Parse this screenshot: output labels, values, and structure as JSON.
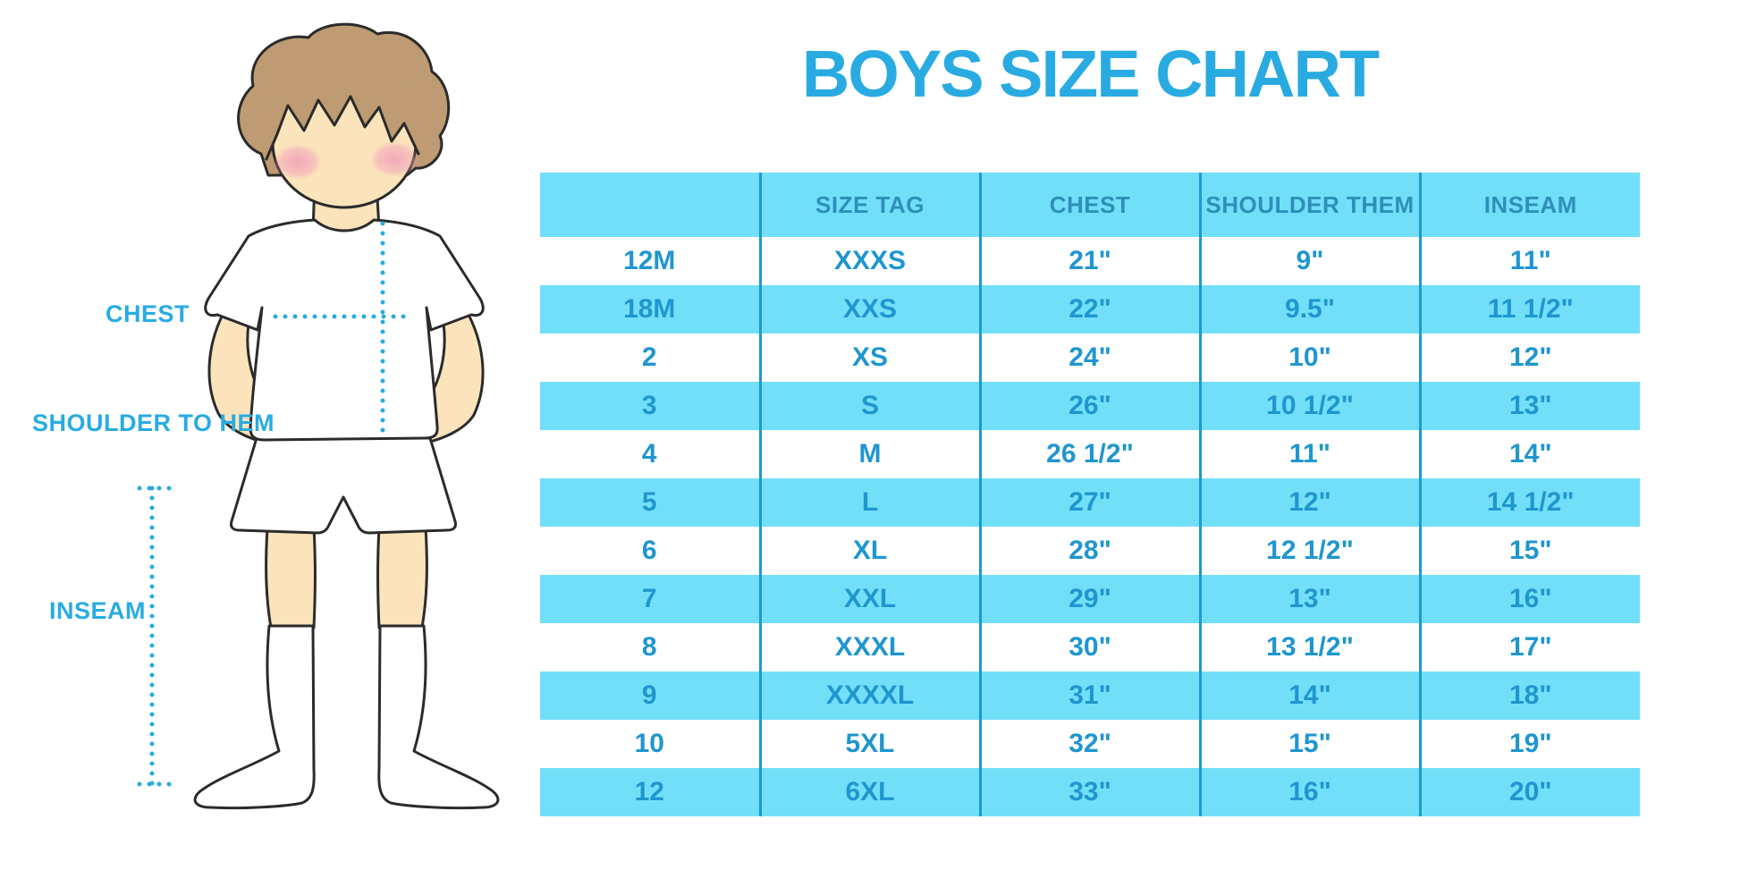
{
  "colors": {
    "accent": "#29ABE2",
    "stripe": "#72DFF9",
    "divider": "#1B9AD2",
    "header_text": "#2E8FB9",
    "cell_text": "#1F96CF",
    "outline": "#2B2B2B",
    "skin": "#FBE4BC",
    "hair": "#BE9B72",
    "blush": "#F2A7BA"
  },
  "figure": {
    "labels": {
      "chest": "CHEST",
      "shoulder_to_hem": "SHOULDER TO HEM",
      "inseam": "INSEAM"
    }
  },
  "chart_data": {
    "type": "table",
    "title": "BOYS SIZE CHART",
    "columns": [
      "",
      "SIZE TAG",
      "CHEST",
      "SHOULDER THEM",
      "INSEAM"
    ],
    "rows": [
      [
        "12M",
        "XXXS",
        "21\"",
        "9\"",
        "11\""
      ],
      [
        "18M",
        "XXS",
        "22\"",
        "9.5\"",
        "11 1/2\""
      ],
      [
        "2",
        "XS",
        "24\"",
        "10\"",
        "12\""
      ],
      [
        "3",
        "S",
        "26\"",
        "10 1/2\"",
        "13\""
      ],
      [
        "4",
        "M",
        "26 1/2\"",
        "11\"",
        "14\""
      ],
      [
        "5",
        "L",
        "27\"",
        "12\"",
        "14 1/2\""
      ],
      [
        "6",
        "XL",
        "28\"",
        "12 1/2\"",
        "15\""
      ],
      [
        "7",
        "XXL",
        "29\"",
        "13\"",
        "16\""
      ],
      [
        "8",
        "XXXL",
        "30\"",
        "13 1/2\"",
        "17\""
      ],
      [
        "9",
        "XXXXL",
        "31\"",
        "14\"",
        "18\""
      ],
      [
        "10",
        "5XL",
        "32\"",
        "15\"",
        "19\""
      ],
      [
        "12",
        "6XL",
        "33\"",
        "16\"",
        "20\""
      ]
    ],
    "stripe_pattern": "header and even body rows light blue, odd body rows white",
    "legend_position": "none",
    "grid": "vertical dividers only"
  }
}
